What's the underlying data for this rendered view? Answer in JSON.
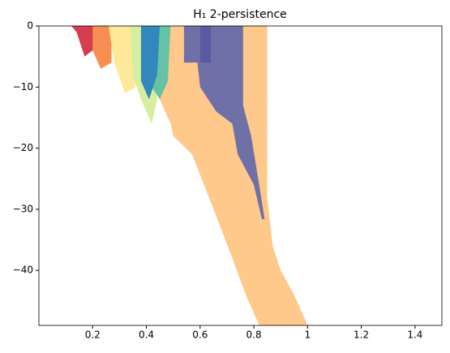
{
  "chart_data": {
    "type": "region",
    "title": "H₁ 2-persistence",
    "xlim": [
      0.0,
      1.5
    ],
    "ylim": [
      -49,
      0
    ],
    "xticks": [
      0.2,
      0.4,
      0.6,
      0.8,
      1.0,
      1.2,
      1.4
    ],
    "yticks": [
      0,
      {
        "value": -10,
        "label": "−10"
      },
      {
        "value": -20,
        "label": "−20"
      },
      {
        "value": -30,
        "label": "−30"
      },
      {
        "value": -40,
        "label": "−40"
      }
    ],
    "regions": [
      {
        "color": "#fec98a",
        "x": [
          0.48,
          0.85,
          0.85,
          0.87,
          0.9,
          0.95,
          1.0,
          0.82,
          0.77,
          0.72,
          0.65,
          0.57,
          0.5,
          0.49,
          0.45,
          0.47,
          0.48
        ],
        "y": [
          0,
          0,
          -28,
          -36,
          -40,
          -44,
          -49,
          -49,
          -44,
          -38,
          -30,
          -21,
          -18,
          -16,
          -12,
          -9,
          0
        ]
      },
      {
        "color": "#7070a8",
        "x": [
          0.54,
          0.76,
          0.76,
          0.79,
          0.82,
          0.84,
          0.83,
          0.8,
          0.74,
          0.72,
          0.66,
          0.6,
          0.59,
          0.54
        ],
        "y": [
          0,
          0,
          -13,
          -18,
          -26,
          -31.6,
          -31.6,
          -26,
          -21,
          -16,
          -14,
          -10,
          -6,
          -6
        ]
      },
      {
        "color": "#5a5aa0",
        "x": [
          0.6,
          0.64,
          0.64,
          0.6
        ],
        "y": [
          0,
          0,
          -6,
          -6
        ]
      },
      {
        "color": "#d53e4f",
        "x": [
          0.12,
          0.22,
          0.2,
          0.17,
          0.14
        ],
        "y": [
          0,
          0,
          -4,
          -5,
          -1
        ]
      },
      {
        "color": "#f98e52",
        "x": [
          0.2,
          0.27,
          0.27,
          0.23,
          0.2
        ],
        "y": [
          0,
          0,
          -6,
          -7,
          -4
        ]
      },
      {
        "color": "#fee99a",
        "x": [
          0.26,
          0.36,
          0.36,
          0.32,
          0.28
        ],
        "y": [
          0,
          0,
          -10,
          -11,
          -6
        ]
      },
      {
        "color": "#d6eea0",
        "x": [
          0.34,
          0.42,
          0.44,
          0.42,
          0.38,
          0.35
        ],
        "y": [
          0,
          0,
          -12,
          -16,
          -12,
          -8
        ]
      },
      {
        "color": "#66c2a5",
        "x": [
          0.4,
          0.49,
          0.48,
          0.45,
          0.42
        ],
        "y": [
          0,
          0,
          -9,
          -12,
          -10
        ]
      },
      {
        "color": "#3288bd",
        "x": [
          0.38,
          0.45,
          0.44,
          0.41,
          0.38
        ],
        "y": [
          0,
          0,
          -8,
          -12,
          -9
        ]
      }
    ]
  }
}
